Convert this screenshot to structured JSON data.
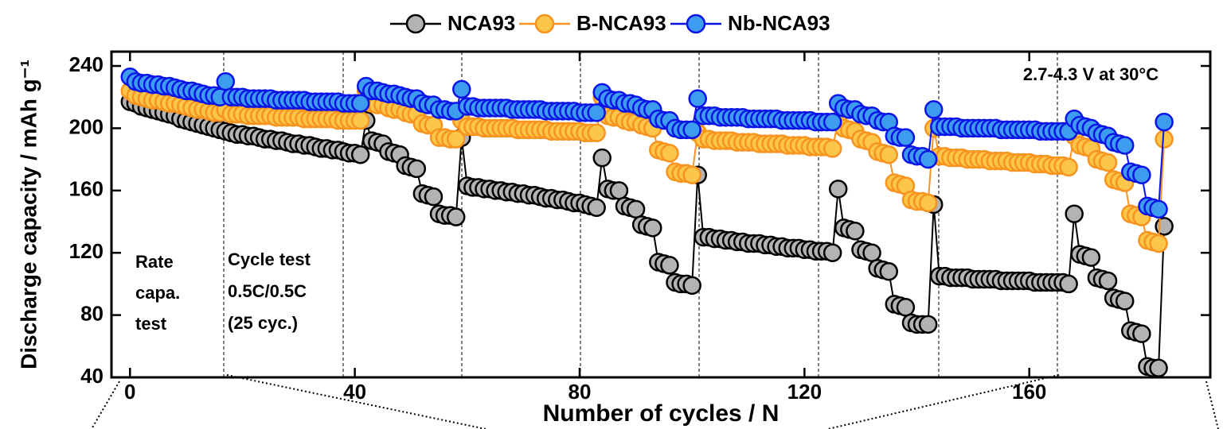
{
  "chart_data": {
    "type": "line",
    "x_label": "Number of cycles / N",
    "y_label": "Discharge capacity / mAh g⁻¹",
    "legend": "top",
    "annotations": [
      "2.7-4.3 V at 30°C",
      [
        "Rate",
        "capa.",
        "test"
      ],
      [
        "Cycle test",
        "0.5C/0.5C",
        "(25 cyc.)"
      ]
    ],
    "xlim": [
      -3.3,
      192.2
    ],
    "xticks": [
      0,
      40,
      80,
      120,
      160
    ],
    "ylim": [
      40,
      249.2
    ],
    "yticks": [
      40,
      80,
      120,
      160,
      200,
      240
    ],
    "x": [
      0,
      1,
      2,
      3,
      4,
      5,
      6,
      7,
      8,
      9,
      10,
      11,
      12,
      13,
      14,
      15,
      16,
      17,
      18,
      19,
      20,
      21,
      22,
      23,
      24,
      25,
      26,
      27,
      28,
      29,
      30,
      31,
      32,
      33,
      34,
      35,
      36,
      37,
      38,
      39,
      40,
      41,
      42,
      43,
      44,
      45,
      46,
      47,
      48,
      49,
      50,
      51,
      52,
      53,
      54,
      55,
      56,
      57,
      58,
      59,
      60,
      61,
      62,
      63,
      64,
      65,
      66,
      67,
      68,
      69,
      70,
      71,
      72,
      73,
      74,
      75,
      76,
      77,
      78,
      79,
      80,
      81,
      82,
      83,
      84,
      85,
      86,
      87,
      88,
      89,
      90,
      91,
      92,
      93,
      94,
      95,
      96,
      97,
      98,
      99,
      100,
      101,
      102,
      103,
      104,
      105,
      106,
      107,
      108,
      109,
      110,
      111,
      112,
      113,
      114,
      115,
      116,
      117,
      118,
      119,
      120,
      121,
      122,
      123,
      124,
      125,
      126,
      127,
      128,
      129,
      130,
      131,
      132,
      133,
      134,
      135,
      136,
      137,
      138,
      139,
      140,
      141,
      142,
      143,
      144,
      145,
      146,
      147,
      148,
      149,
      150,
      151,
      152,
      153,
      154,
      155,
      156,
      157,
      158,
      159,
      160,
      161,
      162,
      163,
      164,
      165,
      166,
      167,
      168,
      169,
      170,
      171,
      172,
      173,
      174,
      175,
      176,
      177,
      178,
      179,
      180,
      181,
      182,
      183,
      184
    ],
    "series": [
      {
        "name": "NCA93",
        "color": "#000000",
        "fill": "#b3b3b3",
        "values": [
          217,
          216,
          214,
          213,
          212,
          211,
          210,
          209,
          208,
          206,
          205,
          204,
          203,
          202,
          201,
          200,
          199,
          198,
          197,
          196,
          196,
          195,
          195,
          194,
          193,
          193,
          192,
          192,
          191,
          190,
          190,
          189,
          189,
          188,
          187,
          187,
          186,
          186,
          185,
          184,
          184,
          183,
          205,
          192,
          191,
          190,
          185,
          184,
          183,
          176,
          175,
          174,
          158,
          157,
          156,
          145,
          144,
          144,
          143,
          194,
          163,
          162,
          162,
          161,
          161,
          160,
          160,
          159,
          159,
          158,
          158,
          157,
          157,
          156,
          155,
          155,
          154,
          154,
          153,
          152,
          152,
          151,
          150,
          149,
          181,
          161,
          160,
          160,
          150,
          149,
          148,
          138,
          137,
          136,
          114,
          113,
          112,
          101,
          100,
          100,
          99,
          170,
          130,
          130,
          129,
          129,
          128,
          128,
          127,
          127,
          126,
          126,
          126,
          125,
          125,
          124,
          124,
          123,
          123,
          123,
          122,
          122,
          121,
          121,
          121,
          120,
          161,
          136,
          135,
          134,
          122,
          121,
          120,
          110,
          109,
          108,
          87,
          86,
          85,
          75,
          74,
          74,
          74,
          151,
          105,
          105,
          104,
          104,
          104,
          104,
          103,
          103,
          103,
          103,
          103,
          102,
          102,
          102,
          102,
          102,
          102,
          101,
          101,
          101,
          101,
          101,
          101,
          100,
          145,
          119,
          118,
          117,
          104,
          103,
          102,
          91,
          90,
          89,
          70,
          69,
          68,
          47,
          46,
          46,
          137
        ]
      },
      {
        "name": "B-NCA93",
        "color": "#f7931e",
        "fill": "#fbc64a",
        "values": [
          224,
          221,
          220,
          219,
          218,
          218,
          217,
          216,
          216,
          215,
          214,
          213,
          212,
          212,
          211,
          210,
          210,
          212,
          209,
          209,
          209,
          208,
          208,
          208,
          208,
          208,
          207,
          207,
          207,
          207,
          207,
          206,
          206,
          206,
          206,
          206,
          206,
          205,
          205,
          205,
          205,
          205,
          224,
          216,
          215,
          215,
          213,
          212,
          212,
          210,
          209,
          209,
          203,
          202,
          202,
          194,
          194,
          193,
          193,
          205,
          201,
          201,
          201,
          200,
          200,
          200,
          200,
          200,
          200,
          199,
          199,
          199,
          199,
          199,
          199,
          198,
          198,
          198,
          198,
          198,
          198,
          197,
          197,
          197,
          220,
          208,
          207,
          207,
          205,
          204,
          204,
          202,
          201,
          200,
          186,
          185,
          184,
          172,
          171,
          171,
          170,
          197,
          193,
          193,
          192,
          192,
          192,
          192,
          191,
          191,
          191,
          191,
          190,
          190,
          190,
          190,
          190,
          189,
          189,
          189,
          189,
          188,
          188,
          188,
          188,
          187,
          205,
          200,
          199,
          198,
          193,
          192,
          191,
          185,
          184,
          183,
          165,
          164,
          163,
          154,
          153,
          153,
          152,
          200,
          182,
          182,
          181,
          181,
          181,
          180,
          180,
          180,
          180,
          179,
          179,
          179,
          179,
          178,
          178,
          178,
          178,
          177,
          177,
          177,
          176,
          176,
          176,
          175,
          195,
          189,
          188,
          187,
          180,
          179,
          178,
          167,
          166,
          165,
          145,
          144,
          143,
          128,
          127,
          126,
          193
        ]
      },
      {
        "name": "Nb-NCA93",
        "color": "#0a14e6",
        "fill": "#3d9bf0",
        "values": [
          233,
          230,
          229,
          229,
          228,
          228,
          227,
          227,
          226,
          225,
          224,
          224,
          223,
          222,
          221,
          221,
          220,
          230,
          220,
          220,
          220,
          219,
          219,
          219,
          219,
          219,
          218,
          218,
          218,
          218,
          218,
          218,
          217,
          217,
          217,
          217,
          217,
          217,
          216,
          216,
          216,
          216,
          227,
          224,
          224,
          223,
          222,
          222,
          221,
          220,
          219,
          219,
          216,
          215,
          215,
          212,
          212,
          211,
          211,
          225,
          214,
          214,
          213,
          213,
          213,
          213,
          213,
          213,
          212,
          212,
          212,
          212,
          212,
          212,
          211,
          211,
          211,
          211,
          211,
          211,
          210,
          210,
          210,
          210,
          223,
          219,
          218,
          218,
          216,
          216,
          215,
          213,
          212,
          212,
          206,
          205,
          205,
          200,
          199,
          199,
          199,
          219,
          208,
          208,
          208,
          207,
          207,
          207,
          207,
          207,
          206,
          206,
          206,
          206,
          206,
          206,
          205,
          205,
          205,
          205,
          205,
          205,
          204,
          204,
          204,
          204,
          216,
          213,
          212,
          212,
          209,
          208,
          208,
          205,
          204,
          204,
          195,
          194,
          194,
          183,
          182,
          182,
          180,
          212,
          201,
          201,
          201,
          201,
          200,
          200,
          200,
          200,
          200,
          200,
          200,
          199,
          199,
          199,
          199,
          199,
          199,
          199,
          198,
          198,
          198,
          198,
          198,
          198,
          206,
          202,
          201,
          200,
          197,
          196,
          195,
          191,
          190,
          189,
          172,
          171,
          170,
          150,
          149,
          148,
          204
        ]
      }
    ]
  }
}
